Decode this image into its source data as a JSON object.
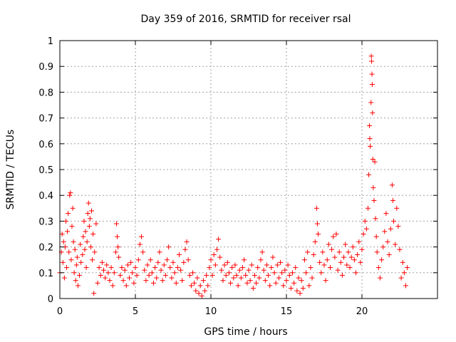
{
  "chart_data": {
    "type": "scatter",
    "title": "Day 359 of 2016, SRMTID for receiver rsal",
    "xlabel": "GPS time / hours",
    "ylabel": "SRMTID / TECUs",
    "xlim": [
      0,
      25
    ],
    "ylim": [
      0,
      1
    ],
    "grid": true,
    "marker": "+",
    "color": "#ff0000",
    "xticks": [
      0,
      5,
      10,
      15,
      20
    ],
    "xtick_labels": [
      "0",
      "5",
      "10",
      "15",
      "20"
    ],
    "yticks": [
      0,
      0.1,
      0.2,
      0.3,
      0.4,
      0.5,
      0.6,
      0.7,
      0.8,
      0.9,
      1
    ],
    "ytick_labels": [
      "0",
      "0.1",
      "0.2",
      "0.3",
      "0.4",
      "0.5",
      "0.6",
      "0.7",
      "0.8",
      "0.9",
      "1"
    ],
    "series": [
      {
        "name": "rsal",
        "points": [
          [
            0.0,
            0.1
          ],
          [
            0.1,
            0.18
          ],
          [
            0.15,
            0.25
          ],
          [
            0.2,
            0.14
          ],
          [
            0.25,
            0.22
          ],
          [
            0.3,
            0.08
          ],
          [
            0.35,
            0.2
          ],
          [
            0.4,
            0.3
          ],
          [
            0.45,
            0.12
          ],
          [
            0.5,
            0.26
          ],
          [
            0.55,
            0.33
          ],
          [
            0.6,
            0.18
          ],
          [
            0.65,
            0.4
          ],
          [
            0.7,
            0.41
          ],
          [
            0.75,
            0.15
          ],
          [
            0.8,
            0.28
          ],
          [
            0.85,
            0.35
          ],
          [
            0.9,
            0.22
          ],
          [
            0.95,
            0.1
          ],
          [
            1.0,
            0.19
          ],
          [
            1.05,
            0.07
          ],
          [
            1.1,
            0.13
          ],
          [
            1.15,
            0.16
          ],
          [
            1.2,
            0.05
          ],
          [
            1.3,
            0.09
          ],
          [
            1.35,
            0.21
          ],
          [
            1.4,
            0.14
          ],
          [
            1.5,
            0.17
          ],
          [
            1.55,
            0.24
          ],
          [
            1.6,
            0.3
          ],
          [
            1.65,
            0.19
          ],
          [
            1.7,
            0.26
          ],
          [
            1.75,
            0.12
          ],
          [
            1.8,
            0.22
          ],
          [
            1.85,
            0.33
          ],
          [
            1.9,
            0.37
          ],
          [
            1.95,
            0.28
          ],
          [
            2.0,
            0.31
          ],
          [
            2.05,
            0.2
          ],
          [
            2.1,
            0.34
          ],
          [
            2.15,
            0.15
          ],
          [
            2.2,
            0.25
          ],
          [
            2.25,
            0.02
          ],
          [
            2.3,
            0.18
          ],
          [
            2.4,
            0.29
          ],
          [
            2.5,
            0.06
          ],
          [
            2.6,
            0.12
          ],
          [
            2.7,
            0.09
          ],
          [
            2.8,
            0.14
          ],
          [
            2.9,
            0.11
          ],
          [
            3.0,
            0.08
          ],
          [
            3.1,
            0.13
          ],
          [
            3.2,
            0.1
          ],
          [
            3.3,
            0.07
          ],
          [
            3.4,
            0.12
          ],
          [
            3.5,
            0.05
          ],
          [
            3.6,
            0.1
          ],
          [
            3.7,
            0.18
          ],
          [
            3.75,
            0.29
          ],
          [
            3.8,
            0.24
          ],
          [
            3.85,
            0.2
          ],
          [
            3.9,
            0.16
          ],
          [
            4.0,
            0.09
          ],
          [
            4.1,
            0.12
          ],
          [
            4.2,
            0.07
          ],
          [
            4.3,
            0.11
          ],
          [
            4.4,
            0.05
          ],
          [
            4.5,
            0.13
          ],
          [
            4.6,
            0.08
          ],
          [
            4.7,
            0.14
          ],
          [
            4.8,
            0.1
          ],
          [
            4.9,
            0.06
          ],
          [
            5.0,
            0.12
          ],
          [
            5.1,
            0.09
          ],
          [
            5.2,
            0.15
          ],
          [
            5.3,
            0.21
          ],
          [
            5.4,
            0.24
          ],
          [
            5.5,
            0.18
          ],
          [
            5.6,
            0.11
          ],
          [
            5.7,
            0.07
          ],
          [
            5.8,
            0.13
          ],
          [
            5.9,
            0.09
          ],
          [
            6.0,
            0.15
          ],
          [
            6.1,
            0.1
          ],
          [
            6.2,
            0.06
          ],
          [
            6.3,
            0.12
          ],
          [
            6.4,
            0.08
          ],
          [
            6.5,
            0.14
          ],
          [
            6.6,
            0.18
          ],
          [
            6.7,
            0.11
          ],
          [
            6.8,
            0.07
          ],
          [
            6.9,
            0.13
          ],
          [
            7.0,
            0.09
          ],
          [
            7.1,
            0.15
          ],
          [
            7.2,
            0.2
          ],
          [
            7.3,
            0.12
          ],
          [
            7.4,
            0.08
          ],
          [
            7.5,
            0.14
          ],
          [
            7.6,
            0.1
          ],
          [
            7.7,
            0.06
          ],
          [
            7.8,
            0.12
          ],
          [
            7.9,
            0.17
          ],
          [
            8.0,
            0.11
          ],
          [
            8.1,
            0.07
          ],
          [
            8.2,
            0.14
          ],
          [
            8.3,
            0.19
          ],
          [
            8.4,
            0.22
          ],
          [
            8.5,
            0.15
          ],
          [
            8.6,
            0.09
          ],
          [
            8.7,
            0.05
          ],
          [
            8.8,
            0.1
          ],
          [
            8.9,
            0.06
          ],
          [
            9.0,
            0.03
          ],
          [
            9.1,
            0.08
          ],
          [
            9.2,
            0.02
          ],
          [
            9.3,
            0.05
          ],
          [
            9.4,
            0.01
          ],
          [
            9.5,
            0.07
          ],
          [
            9.6,
            0.03
          ],
          [
            9.7,
            0.09
          ],
          [
            9.8,
            0.05
          ],
          [
            9.9,
            0.12
          ],
          [
            10.0,
            0.15
          ],
          [
            10.1,
            0.09
          ],
          [
            10.2,
            0.17
          ],
          [
            10.3,
            0.13
          ],
          [
            10.4,
            0.19
          ],
          [
            10.5,
            0.23
          ],
          [
            10.6,
            0.16
          ],
          [
            10.7,
            0.11
          ],
          [
            10.8,
            0.07
          ],
          [
            10.9,
            0.13
          ],
          [
            11.0,
            0.09
          ],
          [
            11.1,
            0.14
          ],
          [
            11.2,
            0.1
          ],
          [
            11.3,
            0.06
          ],
          [
            11.4,
            0.12
          ],
          [
            11.5,
            0.08
          ],
          [
            11.6,
            0.13
          ],
          [
            11.7,
            0.09
          ],
          [
            11.8,
            0.05
          ],
          [
            11.9,
            0.11
          ],
          [
            12.0,
            0.08
          ],
          [
            12.1,
            0.12
          ],
          [
            12.2,
            0.15
          ],
          [
            12.3,
            0.09
          ],
          [
            12.4,
            0.06
          ],
          [
            12.5,
            0.11
          ],
          [
            12.6,
            0.07
          ],
          [
            12.7,
            0.13
          ],
          [
            12.8,
            0.04
          ],
          [
            12.9,
            0.09
          ],
          [
            13.0,
            0.06
          ],
          [
            13.1,
            0.12
          ],
          [
            13.2,
            0.08
          ],
          [
            13.3,
            0.15
          ],
          [
            13.4,
            0.18
          ],
          [
            13.5,
            0.11
          ],
          [
            13.6,
            0.07
          ],
          [
            13.7,
            0.13
          ],
          [
            13.8,
            0.09
          ],
          [
            13.9,
            0.05
          ],
          [
            14.0,
            0.12
          ],
          [
            14.1,
            0.16
          ],
          [
            14.2,
            0.1
          ],
          [
            14.3,
            0.06
          ],
          [
            14.4,
            0.13
          ],
          [
            14.5,
            0.08
          ],
          [
            14.6,
            0.14
          ],
          [
            14.7,
            0.1
          ],
          [
            14.8,
            0.05
          ],
          [
            14.9,
            0.11
          ],
          [
            15.0,
            0.07
          ],
          [
            15.1,
            0.13
          ],
          [
            15.2,
            0.09
          ],
          [
            15.3,
            0.04
          ],
          [
            15.4,
            0.1
          ],
          [
            15.5,
            0.06
          ],
          [
            15.6,
            0.12
          ],
          [
            15.7,
            0.03
          ],
          [
            15.8,
            0.08
          ],
          [
            15.9,
            0.02
          ],
          [
            16.0,
            0.07
          ],
          [
            16.1,
            0.04
          ],
          [
            16.2,
            0.15
          ],
          [
            16.3,
            0.1
          ],
          [
            16.4,
            0.18
          ],
          [
            16.5,
            0.05
          ],
          [
            16.6,
            0.12
          ],
          [
            16.7,
            0.08
          ],
          [
            16.8,
            0.17
          ],
          [
            16.9,
            0.22
          ],
          [
            17.0,
            0.35
          ],
          [
            17.05,
            0.29
          ],
          [
            17.1,
            0.25
          ],
          [
            17.2,
            0.14
          ],
          [
            17.3,
            0.1
          ],
          [
            17.4,
            0.18
          ],
          [
            17.5,
            0.13
          ],
          [
            17.6,
            0.07
          ],
          [
            17.7,
            0.15
          ],
          [
            17.8,
            0.21
          ],
          [
            17.9,
            0.12
          ],
          [
            18.0,
            0.19
          ],
          [
            18.1,
            0.24
          ],
          [
            18.2,
            0.16
          ],
          [
            18.3,
            0.25
          ],
          [
            18.4,
            0.11
          ],
          [
            18.5,
            0.18
          ],
          [
            18.6,
            0.14
          ],
          [
            18.7,
            0.09
          ],
          [
            18.8,
            0.16
          ],
          [
            18.9,
            0.21
          ],
          [
            19.0,
            0.13
          ],
          [
            19.1,
            0.18
          ],
          [
            19.2,
            0.12
          ],
          [
            19.3,
            0.16
          ],
          [
            19.4,
            0.2
          ],
          [
            19.5,
            0.15
          ],
          [
            19.6,
            0.1
          ],
          [
            19.7,
            0.17
          ],
          [
            19.8,
            0.22
          ],
          [
            19.9,
            0.14
          ],
          [
            20.0,
            0.19
          ],
          [
            20.1,
            0.25
          ],
          [
            20.2,
            0.3
          ],
          [
            20.3,
            0.27
          ],
          [
            20.4,
            0.35
          ],
          [
            20.45,
            0.48
          ],
          [
            20.5,
            0.67
          ],
          [
            20.52,
            0.62
          ],
          [
            20.55,
            0.59
          ],
          [
            20.6,
            0.76
          ],
          [
            20.62,
            0.94
          ],
          [
            20.64,
            0.92
          ],
          [
            20.66,
            0.87
          ],
          [
            20.68,
            0.83
          ],
          [
            20.7,
            0.72
          ],
          [
            20.72,
            0.54
          ],
          [
            20.75,
            0.43
          ],
          [
            20.8,
            0.38
          ],
          [
            20.85,
            0.53
          ],
          [
            20.9,
            0.31
          ],
          [
            20.95,
            0.24
          ],
          [
            21.0,
            0.18
          ],
          [
            21.1,
            0.12
          ],
          [
            21.2,
            0.08
          ],
          [
            21.3,
            0.15
          ],
          [
            21.4,
            0.2
          ],
          [
            21.5,
            0.26
          ],
          [
            21.6,
            0.33
          ],
          [
            21.7,
            0.22
          ],
          [
            21.8,
            0.17
          ],
          [
            21.9,
            0.27
          ],
          [
            22.0,
            0.44
          ],
          [
            22.05,
            0.38
          ],
          [
            22.1,
            0.3
          ],
          [
            22.2,
            0.21
          ],
          [
            22.3,
            0.35
          ],
          [
            22.4,
            0.28
          ],
          [
            22.5,
            0.19
          ],
          [
            22.6,
            0.08
          ],
          [
            22.7,
            0.14
          ],
          [
            22.8,
            0.1
          ],
          [
            22.9,
            0.05
          ],
          [
            23.0,
            0.12
          ]
        ]
      }
    ]
  }
}
